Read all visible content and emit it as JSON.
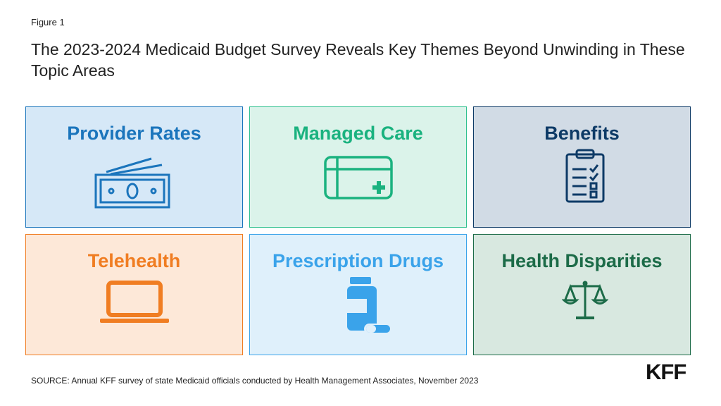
{
  "figure_label": "Figure 1",
  "title": "The 2023-2024 Medicaid Budget Survey Reveals Key Themes Beyond Unwinding in These Topic Areas",
  "tiles": [
    {
      "label": "Provider Rates",
      "icon": "money-bill-icon",
      "text_color": "#1b75bc",
      "bg": "#d6e8f7",
      "border": "#1b75bc"
    },
    {
      "label": "Managed Care",
      "icon": "insurance-card-icon",
      "text_color": "#1ab27f",
      "bg": "#dbf3ea",
      "border": "#2fc08f"
    },
    {
      "label": "Benefits",
      "icon": "clipboard-checklist-icon",
      "text_color": "#0d3a66",
      "bg": "#d1dbe5",
      "border": "#0d3a66"
    },
    {
      "label": "Telehealth",
      "icon": "laptop-icon",
      "text_color": "#f07d22",
      "bg": "#fde8d8",
      "border": "#f07d22"
    },
    {
      "label": "Prescription Drugs",
      "icon": "pill-bottle-icon",
      "text_color": "#3aa3ea",
      "bg": "#dff0fb",
      "border": "#3aa3ea"
    },
    {
      "label": "Health Disparities",
      "icon": "scales-icon",
      "text_color": "#1c6b48",
      "bg": "#d8e8e0",
      "border": "#1c6b48"
    }
  ],
  "source": "SOURCE: Annual KFF survey of state Medicaid officials conducted by Health Management Associates, November 2023",
  "logo": "KFF"
}
